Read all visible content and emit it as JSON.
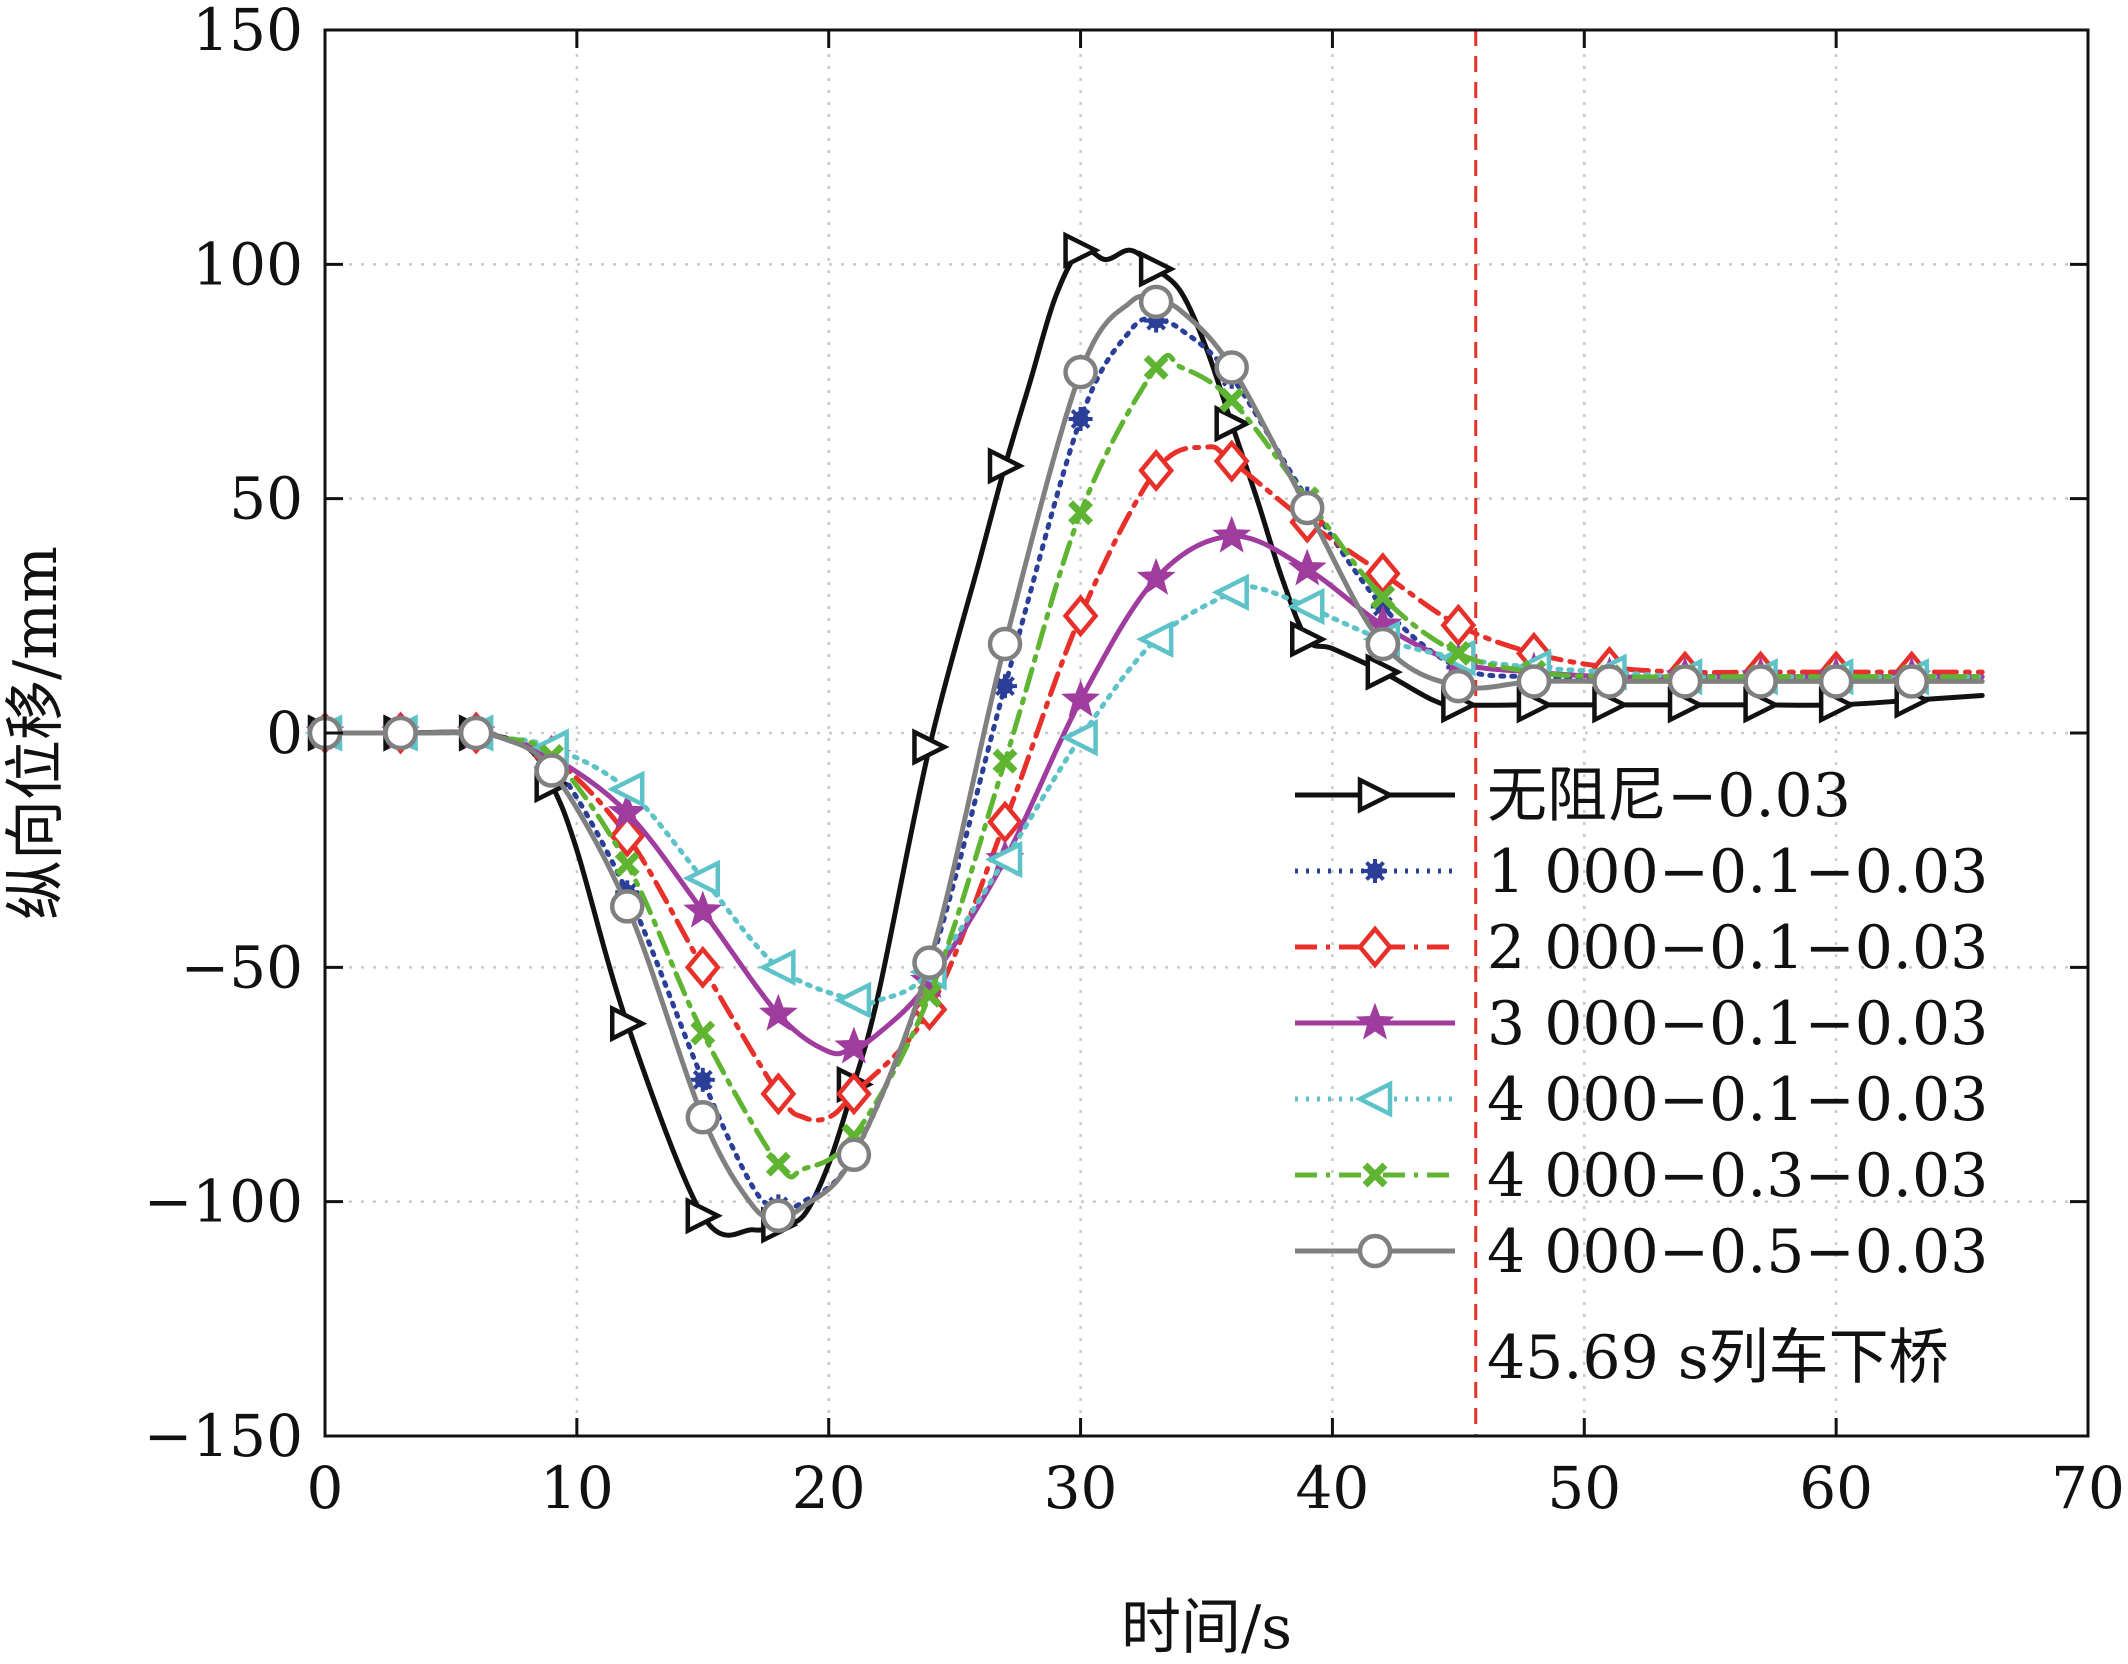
{
  "chart_data": {
    "type": "line",
    "xlabel": "时间/s",
    "ylabel": "纵向位移/mm",
    "xlim": [
      0,
      70
    ],
    "ylim": [
      -150,
      150
    ],
    "xticks": [
      0,
      10,
      20,
      30,
      40,
      50,
      60,
      70
    ],
    "xtick_labels": [
      "0",
      "10",
      "20",
      "30",
      "40",
      "50",
      "60",
      "70"
    ],
    "yticks": [
      -150,
      -100,
      -50,
      0,
      50,
      100,
      150
    ],
    "ytick_labels": [
      "−150",
      "−100",
      "−50",
      "0",
      "50",
      "100",
      "150"
    ],
    "grid": true,
    "legend_position": "lower-right",
    "marker_x": [
      0,
      3,
      6,
      9,
      12,
      15,
      18,
      21,
      24,
      27,
      30,
      33,
      36,
      39,
      42,
      45,
      48,
      51,
      54,
      57,
      60,
      63
    ],
    "series": [
      {
        "name": "无阻尼−0.03",
        "color": "#111111",
        "dash": "solid",
        "marker": "triangle-right",
        "x": [
          0,
          3,
          6,
          8,
          9,
          10,
          12,
          15,
          17,
          18,
          19,
          20,
          21,
          22,
          24,
          26,
          27,
          28,
          29,
          30,
          31,
          32,
          33,
          34,
          35,
          36,
          37,
          38,
          39,
          40,
          42,
          44,
          45,
          48,
          51,
          54,
          57,
          60,
          63,
          65.8
        ],
        "y": [
          0,
          0,
          0,
          -3,
          -11,
          -25,
          -62,
          -103,
          -106,
          -105,
          -103,
          -92,
          -75,
          -55,
          -3,
          37,
          57,
          75,
          93,
          103,
          101,
          103,
          99,
          94,
          82,
          66,
          50,
          33,
          20,
          18,
          13,
          7,
          6,
          6,
          6,
          6,
          6,
          6,
          7,
          8
        ]
      },
      {
        "name": "1 000−0.1−0.03",
        "color": "#2b3f99",
        "dash": "dotted",
        "marker": "star-dot",
        "x": [
          0,
          3,
          6,
          7,
          9,
          12,
          15,
          17,
          18,
          19,
          21,
          24,
          27,
          30,
          32,
          33,
          34,
          36,
          39,
          42,
          45,
          48,
          51,
          54,
          57,
          60,
          63,
          65.8
        ],
        "y": [
          0,
          0,
          0,
          -1,
          -6,
          -34,
          -74,
          -97,
          -101,
          -100,
          -90,
          -50,
          10,
          67,
          86,
          88,
          86,
          76,
          50,
          27,
          14,
          12,
          12,
          12,
          12,
          12,
          12,
          12
        ]
      },
      {
        "name": "2 000−0.1−0.03",
        "color": "#e8302a",
        "dash": "dashdot",
        "marker": "diamond",
        "x": [
          0,
          3,
          6,
          7,
          9,
          12,
          15,
          18,
          19,
          20,
          21,
          24,
          27,
          30,
          33,
          35,
          36,
          39,
          42,
          45,
          48,
          51,
          54,
          57,
          60,
          63,
          65.8
        ],
        "y": [
          0,
          0,
          0,
          -1,
          -5,
          -22,
          -50,
          -77,
          -82,
          -82,
          -77,
          -59,
          -19,
          25,
          56,
          61,
          58,
          45,
          34,
          23,
          17,
          14,
          13,
          13,
          13,
          13,
          13
        ]
      },
      {
        "name": "3 000−0.1−0.03",
        "color": "#a03c9e",
        "dash": "solid",
        "marker": "star",
        "x": [
          0,
          3,
          6,
          7,
          9,
          12,
          15,
          18,
          20,
          21,
          22,
          24,
          27,
          30,
          33,
          36,
          39,
          42,
          45,
          48,
          51,
          54,
          57,
          60,
          63,
          65.8
        ],
        "y": [
          0,
          0,
          0,
          -1,
          -5,
          -17,
          -38,
          -60,
          -68,
          -67,
          -64,
          -53,
          -27,
          7,
          33,
          42,
          35,
          23,
          15,
          13,
          12,
          12,
          12,
          12,
          12,
          12
        ]
      },
      {
        "name": "4 000−0.1−0.03",
        "color": "#5ec3c9",
        "dash": "dotted",
        "marker": "triangle-left",
        "x": [
          0,
          3,
          6,
          7,
          9,
          12,
          15,
          18,
          21,
          22,
          24,
          27,
          30,
          33,
          36,
          37,
          39,
          42,
          45,
          48,
          51,
          54,
          57,
          60,
          63,
          65.8
        ],
        "y": [
          0,
          0,
          0,
          -1,
          -3,
          -12,
          -31,
          -50,
          -57,
          -57,
          -51,
          -27,
          -1,
          20,
          30,
          31,
          27,
          20,
          16,
          14,
          13,
          12,
          12,
          12,
          12,
          12
        ]
      },
      {
        "name": "4 000−0.3−0.03",
        "color": "#5fb532",
        "dash": "dashdot",
        "marker": "x",
        "x": [
          0,
          3,
          6,
          7,
          9,
          12,
          15,
          18,
          19,
          21,
          24,
          27,
          30,
          33,
          34,
          36,
          39,
          42,
          45,
          48,
          51,
          54,
          57,
          60,
          63,
          65.8
        ],
        "y": [
          0,
          0,
          0,
          -1,
          -5,
          -28,
          -64,
          -92,
          -93,
          -86,
          -56,
          -6,
          47,
          78,
          78,
          71,
          50,
          29,
          17,
          13,
          12,
          12,
          12,
          12,
          12,
          12
        ]
      },
      {
        "name": "4 000−0.5−0.03",
        "color": "#808080",
        "dash": "solid",
        "marker": "circle",
        "x": [
          0,
          3,
          6,
          7,
          9,
          12,
          15,
          17,
          18,
          19,
          21,
          24,
          27,
          30,
          32,
          33,
          34,
          36,
          39,
          42,
          45,
          48,
          51,
          54,
          57,
          60,
          63,
          65.8
        ],
        "y": [
          0,
          0,
          0,
          -1,
          -8,
          -37,
          -82,
          -101,
          -103,
          -101,
          -90,
          -49,
          19,
          77,
          92,
          92,
          90,
          78,
          48,
          19,
          10,
          11,
          11,
          11,
          11,
          11,
          11,
          11
        ]
      }
    ],
    "vline": {
      "x": 45.69,
      "color": "#e8302a",
      "dash": "dashed"
    },
    "annotation": "45.69 s列车下桥"
  }
}
